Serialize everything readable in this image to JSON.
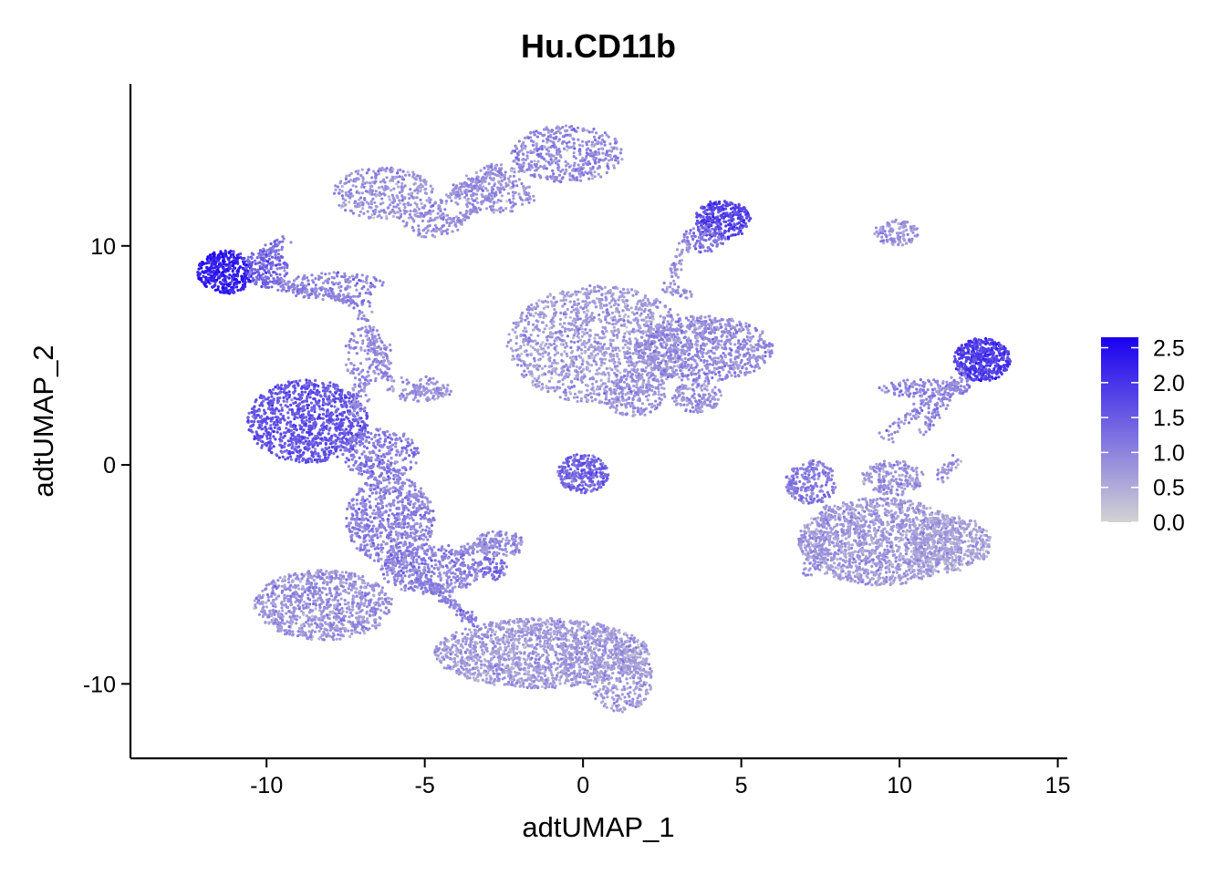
{
  "chart_data": {
    "type": "scatter",
    "title": "Hu.CD11b",
    "xlabel": "adtUMAP_1",
    "ylabel": "adtUMAP_2",
    "xlim": [
      -14.3,
      15.3
    ],
    "ylim": [
      -13.4,
      17.4
    ],
    "x_ticks": [
      -10,
      -5,
      0,
      5,
      10,
      15
    ],
    "x_tick_labels": [
      "-10",
      "-5",
      "0",
      "5",
      "10",
      "15"
    ],
    "y_ticks": [
      -10,
      0,
      10
    ],
    "y_tick_labels": [
      "-10",
      "0",
      "10"
    ],
    "grid": false,
    "legend_position": "right",
    "colorbar": {
      "min": 0.0,
      "max": 2.65,
      "low_color": "#d3d3d3",
      "high_color": "#1a00f0",
      "ticks": [
        0.0,
        0.5,
        1.0,
        1.5,
        2.0,
        2.5
      ],
      "tick_labels": [
        "0.0",
        "0.5",
        "1.0",
        "1.5",
        "2.0",
        "2.5"
      ]
    },
    "clusters": [
      {
        "cx": 0.5,
        "cy": 5.5,
        "rx": 2.9,
        "ry": 2.7,
        "expr": 0.7,
        "n": 1400
      },
      {
        "cx": 3.8,
        "cy": 5.3,
        "rx": 2.2,
        "ry": 1.5,
        "expr": 0.9,
        "n": 800
      },
      {
        "cx": 1.6,
        "cy": 3.3,
        "rx": 1.0,
        "ry": 1.1,
        "expr": 0.8,
        "n": 200
      },
      {
        "cx": 3.6,
        "cy": 3.1,
        "rx": 0.8,
        "ry": 0.7,
        "expr": 0.8,
        "n": 150
      },
      {
        "cx": -0.5,
        "cy": 14.2,
        "rx": 1.8,
        "ry": 1.3,
        "expr": 0.9,
        "n": 450
      },
      {
        "cx": -2.8,
        "cy": 12.3,
        "rx": 1.4,
        "ry": 0.8,
        "expr": 0.8,
        "n": 150
      },
      {
        "cx": -6.3,
        "cy": 12.4,
        "rx": 1.6,
        "ry": 1.2,
        "expr": 0.8,
        "n": 350
      },
      {
        "cx": -4.8,
        "cy": 11.0,
        "rx": 1.0,
        "ry": 0.6,
        "expr": 0.8,
        "n": 100
      },
      {
        "cx": 4.4,
        "cy": 11.2,
        "rx": 0.9,
        "ry": 0.9,
        "expr": 1.8,
        "n": 300
      },
      {
        "cx": 3.8,
        "cy": 10.3,
        "rx": 0.7,
        "ry": 0.6,
        "expr": 1.1,
        "n": 100
      },
      {
        "cx": 9.9,
        "cy": 10.6,
        "rx": 0.7,
        "ry": 0.6,
        "expr": 0.8,
        "n": 120
      },
      {
        "cx": -11.3,
        "cy": 8.8,
        "rx": 0.9,
        "ry": 1.0,
        "expr": 2.3,
        "n": 400
      },
      {
        "cx": -10.0,
        "cy": 9.0,
        "rx": 0.7,
        "ry": 0.9,
        "expr": 1.4,
        "n": 180
      },
      {
        "cx": -8.0,
        "cy": 8.2,
        "rx": 1.8,
        "ry": 0.6,
        "expr": 1.0,
        "n": 150
      },
      {
        "cx": -6.8,
        "cy": 5.0,
        "rx": 0.8,
        "ry": 1.3,
        "expr": 0.9,
        "n": 120
      },
      {
        "cx": -5.2,
        "cy": 3.5,
        "rx": 1.0,
        "ry": 0.6,
        "expr": 0.8,
        "n": 80
      },
      {
        "cx": -8.7,
        "cy": 2.0,
        "rx": 1.9,
        "ry": 1.9,
        "expr": 1.6,
        "n": 1000
      },
      {
        "cx": -6.4,
        "cy": 0.5,
        "rx": 1.2,
        "ry": 1.2,
        "expr": 1.1,
        "n": 300
      },
      {
        "cx": -6.1,
        "cy": -2.5,
        "rx": 1.4,
        "ry": 2.0,
        "expr": 1.0,
        "n": 700
      },
      {
        "cx": -4.8,
        "cy": -4.8,
        "rx": 1.6,
        "ry": 1.1,
        "expr": 1.0,
        "n": 450
      },
      {
        "cx": -2.6,
        "cy": -3.6,
        "rx": 0.8,
        "ry": 0.6,
        "expr": 0.9,
        "n": 130
      },
      {
        "cx": -2.9,
        "cy": -4.7,
        "rx": 0.5,
        "ry": 0.6,
        "expr": 1.2,
        "n": 70
      },
      {
        "cx": -8.2,
        "cy": -6.4,
        "rx": 2.2,
        "ry": 1.6,
        "expr": 0.8,
        "n": 900
      },
      {
        "cx": -1.3,
        "cy": -8.6,
        "rx": 3.4,
        "ry": 1.6,
        "expr": 0.7,
        "n": 1700
      },
      {
        "cx": 1.2,
        "cy": -9.8,
        "rx": 1.0,
        "ry": 1.5,
        "expr": 0.7,
        "n": 300
      },
      {
        "cx": 0.0,
        "cy": -0.4,
        "rx": 0.8,
        "ry": 0.9,
        "expr": 1.4,
        "n": 280
      },
      {
        "cx": 12.6,
        "cy": 4.8,
        "rx": 0.9,
        "ry": 1.0,
        "expr": 1.9,
        "n": 500
      },
      {
        "cx": 10.8,
        "cy": 3.5,
        "rx": 1.5,
        "ry": 0.4,
        "expr": 1.0,
        "n": 150
      },
      {
        "cx": 7.2,
        "cy": -0.8,
        "rx": 0.8,
        "ry": 1.0,
        "expr": 1.1,
        "n": 220
      },
      {
        "cx": 9.4,
        "cy": -3.5,
        "rx": 2.6,
        "ry": 2.0,
        "expr": 0.7,
        "n": 1500
      },
      {
        "cx": 11.6,
        "cy": -3.6,
        "rx": 1.3,
        "ry": 1.3,
        "expr": 0.6,
        "n": 450
      },
      {
        "cx": 9.8,
        "cy": -0.6,
        "rx": 1.0,
        "ry": 0.8,
        "expr": 0.8,
        "n": 200
      }
    ],
    "bridges": [
      {
        "x1": -5.0,
        "y1": 11.4,
        "x2": -2.8,
        "y2": 13.6,
        "expr": 0.8,
        "n": 110
      },
      {
        "x1": -4.0,
        "y1": 11.0,
        "x2": -2.2,
        "y2": 13.2,
        "expr": 0.8,
        "n": 90
      },
      {
        "x1": -3.8,
        "y1": 12.5,
        "x2": -1.6,
        "y2": 13.8,
        "expr": 0.8,
        "n": 70
      },
      {
        "x1": -10.0,
        "y1": 9.6,
        "x2": -9.5,
        "y2": 10.3,
        "expr": 1.1,
        "n": 40
      },
      {
        "x1": -9.7,
        "y1": 8.3,
        "x2": -6.8,
        "y2": 7.3,
        "expr": 1.0,
        "n": 140
      },
      {
        "x1": -6.9,
        "y1": 6.9,
        "x2": -6.2,
        "y2": 3.8,
        "expr": 0.9,
        "n": 90
      },
      {
        "x1": -5.4,
        "y1": 3.4,
        "x2": -4.2,
        "y2": 3.3,
        "expr": 0.8,
        "n": 50
      },
      {
        "x1": -7.0,
        "y1": 3.8,
        "x2": -7.2,
        "y2": 2.2,
        "expr": 0.9,
        "n": 60
      },
      {
        "x1": -5.4,
        "y1": -4.8,
        "x2": -3.4,
        "y2": -7.2,
        "expr": 1.0,
        "n": 140
      },
      {
        "x1": -4.0,
        "y1": -3.9,
        "x2": -2.8,
        "y2": -3.6,
        "expr": 0.9,
        "n": 70
      },
      {
        "x1": 3.2,
        "y1": 10.1,
        "x2": 2.6,
        "y2": 8.0,
        "expr": 0.8,
        "n": 45
      },
      {
        "x1": 2.6,
        "y1": 8.0,
        "x2": 3.4,
        "y2": 7.8,
        "expr": 0.8,
        "n": 30
      },
      {
        "x1": 9.5,
        "y1": 1.3,
        "x2": 11.4,
        "y2": 3.4,
        "expr": 0.9,
        "n": 70
      },
      {
        "x1": 10.7,
        "y1": 1.5,
        "x2": 12.1,
        "y2": 4.3,
        "expr": 0.9,
        "n": 90
      },
      {
        "x1": 11.2,
        "y1": -0.8,
        "x2": 11.8,
        "y2": 0.3,
        "expr": 0.8,
        "n": 40
      },
      {
        "x1": 7.1,
        "y1": -5.1,
        "x2": 7.8,
        "y2": -2.0,
        "expr": 0.8,
        "n": 70
      }
    ]
  }
}
